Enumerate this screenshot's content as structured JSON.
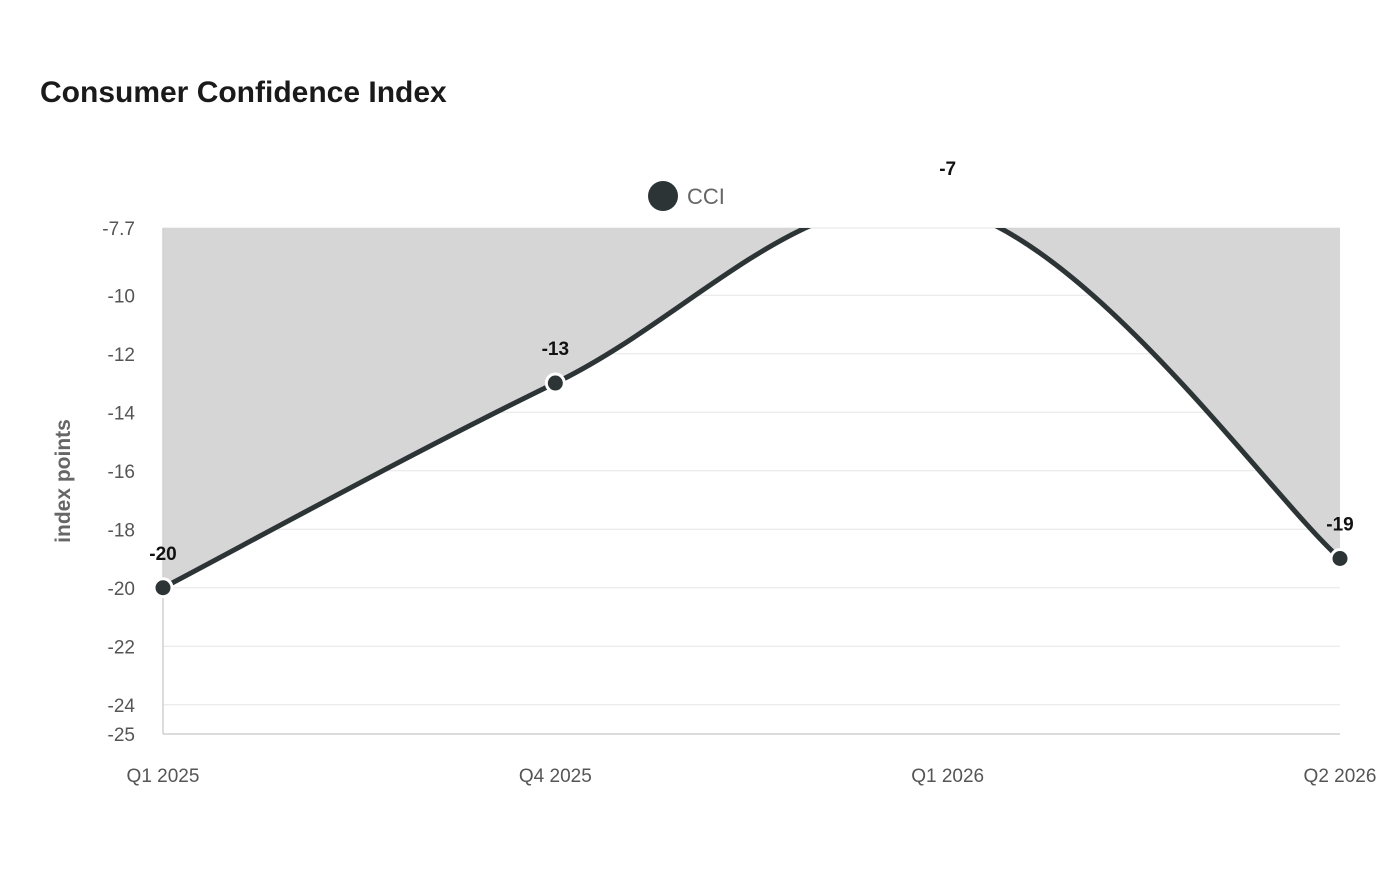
{
  "chart_data": {
    "type": "line",
    "title": "Consumer Confidence Index",
    "ylabel": "index points",
    "xlabel": "",
    "categories": [
      "Q1 2025",
      "Q4 2025",
      "Q1 2026",
      "Q2 2026"
    ],
    "series": [
      {
        "name": "CCI",
        "values": [
          -20,
          -13,
          -7,
          -19
        ],
        "color": "#2d3436"
      }
    ],
    "ylim": [
      -25,
      -7.7
    ],
    "yticks": [
      "-7.7",
      "-10",
      "-12",
      "-14",
      "-16",
      "-18",
      "-20",
      "-22",
      "-24",
      "-25"
    ],
    "data_labels": [
      "-20",
      "-13",
      "-7",
      "-19"
    ],
    "area_fill_color": "#d6d6d6",
    "grid": true,
    "legend_position": "top-center"
  }
}
